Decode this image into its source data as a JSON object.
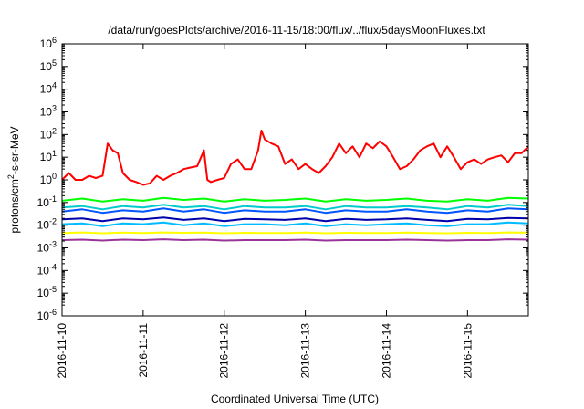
{
  "chart_data": {
    "type": "line",
    "title": "/data/run/goesPlots/archive/2016-11-15/18:00/flux/../flux/5daysMoonFluxes.txt",
    "xlabel": "Coordinated Universal Time (UTC)",
    "ylabel": {
      "base": "protons/cm",
      "sup": "2",
      "rest": "-s-sr-MeV"
    },
    "yscale": "log",
    "ylim": [
      1e-06,
      1000000
    ],
    "xlim": [
      "2016-11-10 00:00",
      "2016-11-15 18:00"
    ],
    "grid": false,
    "y_ticks": [
      {
        "base": "10",
        "exp": "-6",
        "value": 1e-06
      },
      {
        "base": "10",
        "exp": "-5",
        "value": 1e-05
      },
      {
        "base": "10",
        "exp": "-4",
        "value": 0.0001
      },
      {
        "base": "10",
        "exp": "-3",
        "value": 0.001
      },
      {
        "base": "10",
        "exp": "-2",
        "value": 0.01
      },
      {
        "base": "10",
        "exp": "-1",
        "value": 0.1
      },
      {
        "base": "10",
        "exp": "0",
        "value": 1
      },
      {
        "base": "10",
        "exp": "1",
        "value": 10
      },
      {
        "base": "10",
        "exp": "2",
        "value": 100
      },
      {
        "base": "10",
        "exp": "3",
        "value": 1000
      },
      {
        "base": "10",
        "exp": "4",
        "value": 10000
      },
      {
        "base": "10",
        "exp": "5",
        "value": 100000
      },
      {
        "base": "10",
        "exp": "6",
        "value": 1000000
      }
    ],
    "x_ticks": [
      {
        "label": "2016-11-10",
        "value": "2016-11-10 00:00"
      },
      {
        "label": "2016-11-11",
        "value": "2016-11-11 00:00"
      },
      {
        "label": "2016-11-12",
        "value": "2016-11-12 00:00"
      },
      {
        "label": "2016-11-13",
        "value": "2016-11-13 00:00"
      },
      {
        "label": "2016-11-14",
        "value": "2016-11-14 00:00"
      },
      {
        "label": "2016-11-15",
        "value": "2016-11-15 00:00"
      }
    ],
    "series": [
      {
        "color": "#ff0000",
        "x": [
          "2016-11-10 00:00",
          "2016-11-10 02:00",
          "2016-11-10 04:00",
          "2016-11-10 06:00",
          "2016-11-10 08:00",
          "2016-11-10 10:00",
          "2016-11-10 12:00",
          "2016-11-10 13:30",
          "2016-11-10 15:00",
          "2016-11-10 16:30",
          "2016-11-10 18:00",
          "2016-11-10 20:00",
          "2016-11-10 22:00",
          "2016-11-11 00:00",
          "2016-11-11 02:00",
          "2016-11-11 04:00",
          "2016-11-11 06:00",
          "2016-11-11 08:00",
          "2016-11-11 10:00",
          "2016-11-11 12:00",
          "2016-11-11 14:00",
          "2016-11-11 16:00",
          "2016-11-11 18:00",
          "2016-11-11 19:00",
          "2016-11-11 20:00",
          "2016-11-11 22:00",
          "2016-11-12 00:00",
          "2016-11-12 02:00",
          "2016-11-12 04:00",
          "2016-11-12 06:00",
          "2016-11-12 08:00",
          "2016-11-12 10:00",
          "2016-11-12 11:00",
          "2016-11-12 12:00",
          "2016-11-12 14:00",
          "2016-11-12 16:00",
          "2016-11-12 18:00",
          "2016-11-12 20:00",
          "2016-11-12 22:00",
          "2016-11-13 00:00",
          "2016-11-13 02:00",
          "2016-11-13 04:00",
          "2016-11-13 06:00",
          "2016-11-13 08:00",
          "2016-11-13 10:00",
          "2016-11-13 12:00",
          "2016-11-13 14:00",
          "2016-11-13 16:00",
          "2016-11-13 18:00",
          "2016-11-13 20:00",
          "2016-11-13 22:00",
          "2016-11-14 00:00",
          "2016-11-14 02:00",
          "2016-11-14 04:00",
          "2016-11-14 06:00",
          "2016-11-14 08:00",
          "2016-11-14 10:00",
          "2016-11-14 12:00",
          "2016-11-14 14:00",
          "2016-11-14 16:00",
          "2016-11-14 18:00",
          "2016-11-14 20:00",
          "2016-11-14 22:00",
          "2016-11-15 00:00",
          "2016-11-15 02:00",
          "2016-11-15 04:00",
          "2016-11-15 06:00",
          "2016-11-15 08:00",
          "2016-11-15 10:00",
          "2016-11-15 12:00",
          "2016-11-15 14:00",
          "2016-11-15 16:00",
          "2016-11-15 18:00"
        ],
        "values": [
          1.0,
          2.0,
          1.0,
          1.0,
          1.5,
          1.2,
          1.5,
          40,
          20,
          15,
          2,
          1,
          0.8,
          0.6,
          0.7,
          1.5,
          1.0,
          1.5,
          2.0,
          3.0,
          3.5,
          4.0,
          20,
          1.0,
          0.8,
          1.0,
          1.2,
          5.0,
          8.0,
          3.0,
          3.0,
          20,
          150,
          60,
          40,
          30,
          5,
          8,
          3,
          5,
          3,
          2,
          4,
          10,
          40,
          15,
          30,
          10,
          40,
          25,
          50,
          30,
          10,
          3,
          4,
          8,
          20,
          30,
          40,
          10,
          30,
          10,
          3,
          6,
          8,
          5,
          8,
          10,
          12,
          6,
          15,
          15,
          30
        ]
      },
      {
        "color": "#00ff00",
        "x": [
          "2016-11-10 00:00",
          "2016-11-10 06:00",
          "2016-11-10 12:00",
          "2016-11-10 18:00",
          "2016-11-11 00:00",
          "2016-11-11 06:00",
          "2016-11-11 12:00",
          "2016-11-11 18:00",
          "2016-11-12 00:00",
          "2016-11-12 06:00",
          "2016-11-12 12:00",
          "2016-11-12 18:00",
          "2016-11-13 00:00",
          "2016-11-13 06:00",
          "2016-11-13 12:00",
          "2016-11-13 18:00",
          "2016-11-14 00:00",
          "2016-11-14 06:00",
          "2016-11-14 12:00",
          "2016-11-14 18:00",
          "2016-11-15 00:00",
          "2016-11-15 06:00",
          "2016-11-15 12:00",
          "2016-11-15 18:00"
        ],
        "values": [
          0.12,
          0.15,
          0.11,
          0.14,
          0.12,
          0.16,
          0.13,
          0.15,
          0.11,
          0.14,
          0.12,
          0.13,
          0.15,
          0.11,
          0.14,
          0.12,
          0.13,
          0.15,
          0.12,
          0.11,
          0.14,
          0.12,
          0.16,
          0.15
        ]
      },
      {
        "color": "#00cccc",
        "x": [
          "2016-11-10 00:00",
          "2016-11-10 06:00",
          "2016-11-10 12:00",
          "2016-11-10 18:00",
          "2016-11-11 00:00",
          "2016-11-11 06:00",
          "2016-11-11 12:00",
          "2016-11-11 18:00",
          "2016-11-12 00:00",
          "2016-11-12 06:00",
          "2016-11-12 12:00",
          "2016-11-12 18:00",
          "2016-11-13 00:00",
          "2016-11-13 06:00",
          "2016-11-13 12:00",
          "2016-11-13 18:00",
          "2016-11-14 00:00",
          "2016-11-14 06:00",
          "2016-11-14 12:00",
          "2016-11-14 18:00",
          "2016-11-15 00:00",
          "2016-11-15 06:00",
          "2016-11-15 12:00",
          "2016-11-15 18:00"
        ],
        "values": [
          0.06,
          0.07,
          0.05,
          0.07,
          0.06,
          0.08,
          0.06,
          0.07,
          0.05,
          0.07,
          0.06,
          0.06,
          0.07,
          0.05,
          0.07,
          0.06,
          0.06,
          0.07,
          0.06,
          0.05,
          0.07,
          0.06,
          0.08,
          0.07
        ]
      },
      {
        "color": "#0055ff",
        "x": [
          "2016-11-10 00:00",
          "2016-11-10 06:00",
          "2016-11-10 12:00",
          "2016-11-10 18:00",
          "2016-11-11 00:00",
          "2016-11-11 06:00",
          "2016-11-11 12:00",
          "2016-11-11 18:00",
          "2016-11-12 00:00",
          "2016-11-12 06:00",
          "2016-11-12 12:00",
          "2016-11-12 18:00",
          "2016-11-13 00:00",
          "2016-11-13 06:00",
          "2016-11-13 12:00",
          "2016-11-13 18:00",
          "2016-11-14 00:00",
          "2016-11-14 06:00",
          "2016-11-14 12:00",
          "2016-11-14 18:00",
          "2016-11-15 00:00",
          "2016-11-15 06:00",
          "2016-11-15 12:00",
          "2016-11-15 18:00"
        ],
        "values": [
          0.04,
          0.05,
          0.035,
          0.045,
          0.04,
          0.055,
          0.04,
          0.05,
          0.035,
          0.045,
          0.04,
          0.04,
          0.05,
          0.035,
          0.045,
          0.04,
          0.04,
          0.05,
          0.04,
          0.035,
          0.045,
          0.04,
          0.055,
          0.05
        ]
      },
      {
        "color": "#0000aa",
        "x": [
          "2016-11-10 00:00",
          "2016-11-10 06:00",
          "2016-11-10 12:00",
          "2016-11-10 18:00",
          "2016-11-11 00:00",
          "2016-11-11 06:00",
          "2016-11-11 12:00",
          "2016-11-11 18:00",
          "2016-11-12 00:00",
          "2016-11-12 06:00",
          "2016-11-12 12:00",
          "2016-11-12 18:00",
          "2016-11-13 00:00",
          "2016-11-13 06:00",
          "2016-11-13 12:00",
          "2016-11-13 18:00",
          "2016-11-14 00:00",
          "2016-11-14 06:00",
          "2016-11-14 12:00",
          "2016-11-14 18:00",
          "2016-11-15 00:00",
          "2016-11-15 06:00",
          "2016-11-15 12:00",
          "2016-11-15 18:00"
        ],
        "values": [
          0.018,
          0.02,
          0.015,
          0.02,
          0.018,
          0.022,
          0.017,
          0.02,
          0.015,
          0.019,
          0.018,
          0.017,
          0.02,
          0.015,
          0.019,
          0.017,
          0.018,
          0.02,
          0.017,
          0.015,
          0.019,
          0.018,
          0.021,
          0.02
        ]
      },
      {
        "color": "#00bbff",
        "x": [
          "2016-11-10 00:00",
          "2016-11-10 06:00",
          "2016-11-10 12:00",
          "2016-11-10 18:00",
          "2016-11-11 00:00",
          "2016-11-11 06:00",
          "2016-11-11 12:00",
          "2016-11-11 18:00",
          "2016-11-12 00:00",
          "2016-11-12 06:00",
          "2016-11-12 12:00",
          "2016-11-12 18:00",
          "2016-11-13 00:00",
          "2016-11-13 06:00",
          "2016-11-13 12:00",
          "2016-11-13 18:00",
          "2016-11-14 00:00",
          "2016-11-14 06:00",
          "2016-11-14 12:00",
          "2016-11-14 18:00",
          "2016-11-15 00:00",
          "2016-11-15 06:00",
          "2016-11-15 12:00",
          "2016-11-15 18:00"
        ],
        "values": [
          0.011,
          0.012,
          0.009,
          0.012,
          0.011,
          0.013,
          0.01,
          0.012,
          0.009,
          0.011,
          0.011,
          0.01,
          0.012,
          0.009,
          0.011,
          0.01,
          0.011,
          0.012,
          0.01,
          0.009,
          0.011,
          0.011,
          0.013,
          0.012
        ]
      },
      {
        "color": "#ffff00",
        "x": [
          "2016-11-10 00:00",
          "2016-11-10 06:00",
          "2016-11-10 12:00",
          "2016-11-10 18:00",
          "2016-11-11 00:00",
          "2016-11-11 06:00",
          "2016-11-11 12:00",
          "2016-11-11 18:00",
          "2016-11-12 00:00",
          "2016-11-12 06:00",
          "2016-11-12 12:00",
          "2016-11-12 18:00",
          "2016-11-13 00:00",
          "2016-11-13 06:00",
          "2016-11-13 12:00",
          "2016-11-13 18:00",
          "2016-11-14 00:00",
          "2016-11-14 06:00",
          "2016-11-14 12:00",
          "2016-11-14 18:00",
          "2016-11-15 00:00",
          "2016-11-15 06:00",
          "2016-11-15 12:00",
          "2016-11-15 18:00"
        ],
        "values": [
          0.0045,
          0.0048,
          0.0044,
          0.0047,
          0.0045,
          0.0048,
          0.0046,
          0.0047,
          0.0044,
          0.0046,
          0.0045,
          0.0045,
          0.0047,
          0.0044,
          0.0046,
          0.0045,
          0.0045,
          0.0047,
          0.0045,
          0.0044,
          0.0046,
          0.0045,
          0.0048,
          0.0047
        ]
      },
      {
        "color": "#993399",
        "x": [
          "2016-11-10 00:00",
          "2016-11-10 06:00",
          "2016-11-10 12:00",
          "2016-11-10 18:00",
          "2016-11-11 00:00",
          "2016-11-11 06:00",
          "2016-11-11 12:00",
          "2016-11-11 18:00",
          "2016-11-12 00:00",
          "2016-11-12 06:00",
          "2016-11-12 12:00",
          "2016-11-12 18:00",
          "2016-11-13 00:00",
          "2016-11-13 06:00",
          "2016-11-13 12:00",
          "2016-11-13 18:00",
          "2016-11-14 00:00",
          "2016-11-14 06:00",
          "2016-11-14 12:00",
          "2016-11-14 18:00",
          "2016-11-15 00:00",
          "2016-11-15 06:00",
          "2016-11-15 12:00",
          "2016-11-15 18:00"
        ],
        "values": [
          0.0022,
          0.0023,
          0.0021,
          0.0023,
          0.0022,
          0.0024,
          0.0022,
          0.0023,
          0.0021,
          0.0022,
          0.0022,
          0.0022,
          0.0023,
          0.0021,
          0.0022,
          0.0022,
          0.0022,
          0.0023,
          0.0022,
          0.0021,
          0.0022,
          0.0022,
          0.0024,
          0.0023
        ]
      }
    ]
  }
}
